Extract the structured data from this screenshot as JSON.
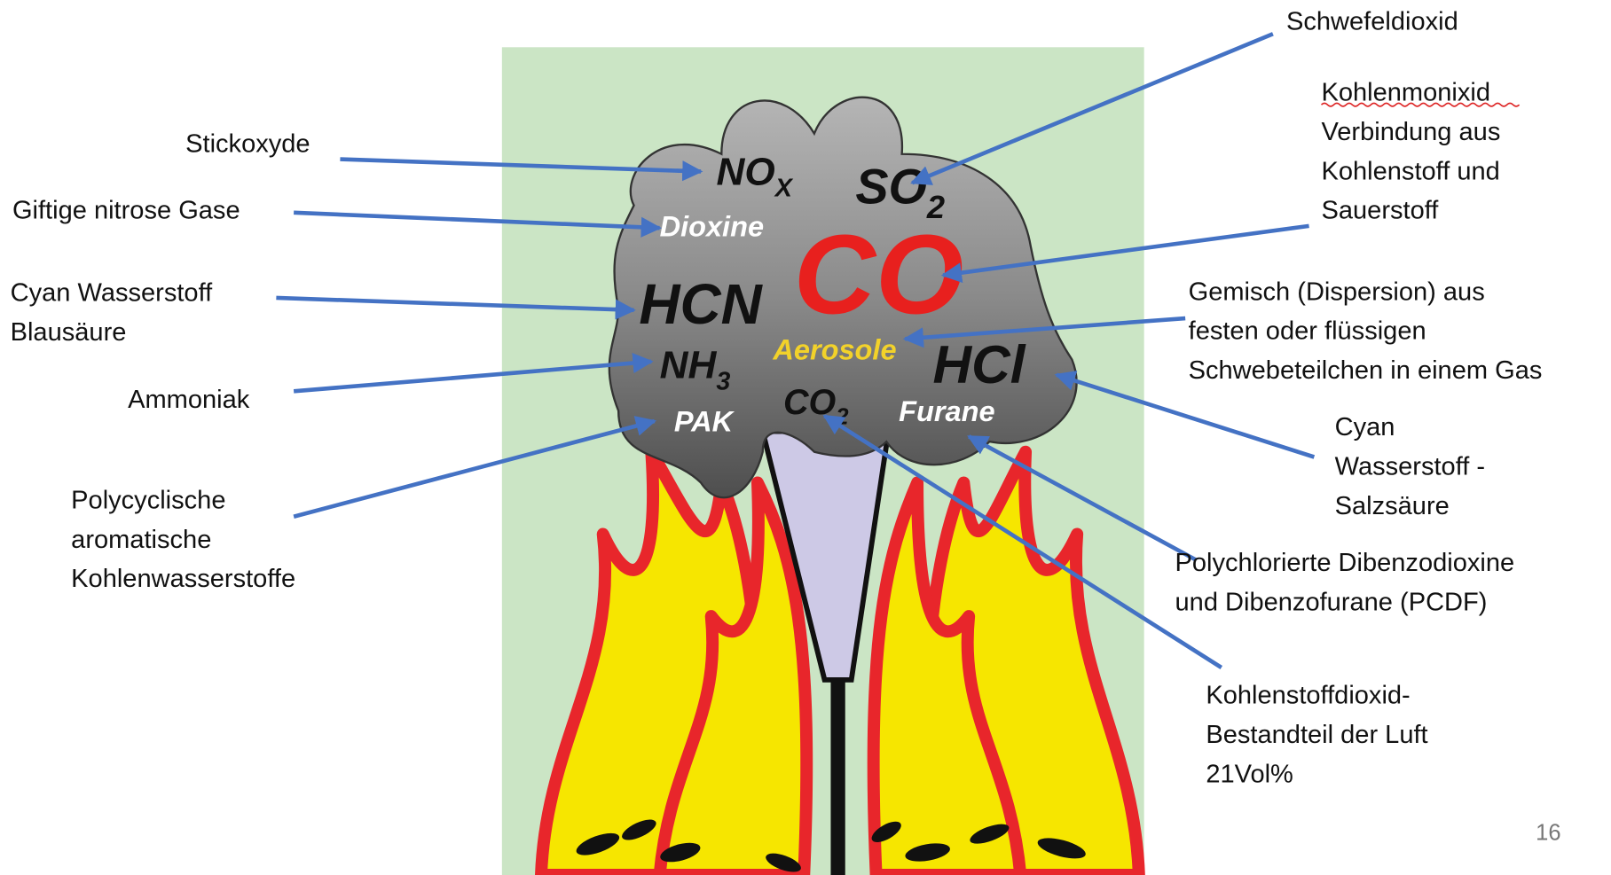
{
  "left_labels": [
    {
      "lines": [
        "Stickoxyde"
      ]
    },
    {
      "lines": [
        "Giftige nitrose Gase"
      ]
    },
    {
      "lines": [
        "Cyan Wasserstoff",
        "Blausäure"
      ]
    },
    {
      "lines": [
        "Ammoniak"
      ]
    },
    {
      "lines": [
        "Polycyclische",
        "aromatische",
        "Kohlenwasserstoffe"
      ]
    }
  ],
  "right_labels": [
    {
      "lines": [
        "Schwefeldioxid"
      ]
    },
    {
      "lines": [
        "Kohlenmonixid",
        "Verbindung aus",
        "Kohlenstoff und",
        "Sauerstoff"
      ]
    },
    {
      "lines": [
        "Gemisch (Dispersion) aus",
        "festen oder flüssigen",
        "Schwebeteilchen in einem Gas"
      ]
    },
    {
      "lines": [
        "Cyan",
        "Wasserstoff -",
        "Salzsäure"
      ]
    },
    {
      "lines": [
        "Polychlorierte Dibenzodioxine",
        "und Dibenzofurane (PCDF)"
      ]
    },
    {
      "lines": [
        "Kohlenstoffdioxid-",
        "Bestandteil der Luft",
        "21Vol%"
      ]
    }
  ],
  "cloud_labels": [
    {
      "text": "NO",
      "sub": "X"
    },
    {
      "text": "SO",
      "sub": "2"
    },
    {
      "text": "Dioxine"
    },
    {
      "text": "CO"
    },
    {
      "text": "HCN"
    },
    {
      "text": "Aerosole"
    },
    {
      "text": "HCl"
    },
    {
      "text": "NH",
      "sub": "3"
    },
    {
      "text": "CO",
      "sub": "2"
    },
    {
      "text": "Furane"
    },
    {
      "text": "PAK"
    }
  ],
  "page_number": "16"
}
